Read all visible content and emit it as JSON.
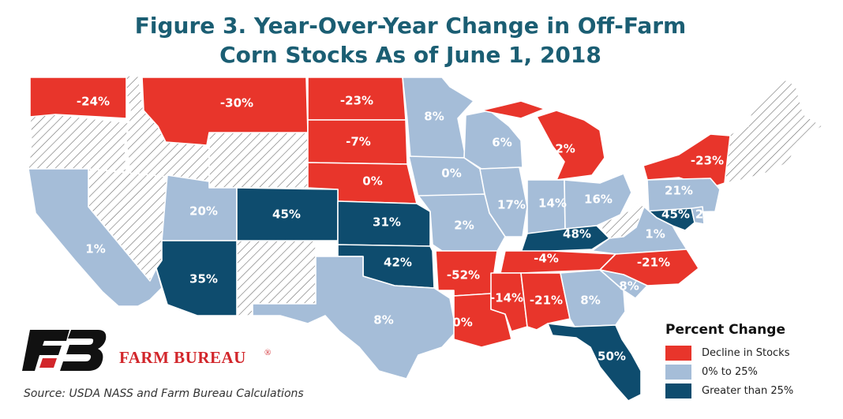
{
  "title": {
    "line1": "Figure 3. Year-Over-Year Change in Off-Farm",
    "line2": "Corn Stocks As of June 1, 2018"
  },
  "legend": {
    "title": "Percent Change",
    "items": [
      {
        "label": "Decline in Stocks",
        "color": "#e8352b"
      },
      {
        "label": "0% to 25%",
        "color": "#a5bdd8"
      },
      {
        "label": "Greater than 25%",
        "color": "#0e4c6e"
      }
    ]
  },
  "colors": {
    "decline": "#e8352b",
    "moderate": "#a5bdd8",
    "high": "#0e4c6e",
    "no_data": "hatched",
    "title": "#1b5e73",
    "brand": "#d2262b"
  },
  "brand": {
    "name": "FARM BUREAU",
    "logo_icon": "fb-logo-icon"
  },
  "source": "Source: USDA NASS and Farm Bureau Calculations",
  "states": [
    {
      "state": "WA",
      "label": "-24%",
      "category": "decline"
    },
    {
      "state": "MT",
      "label": "-30%",
      "category": "decline"
    },
    {
      "state": "ND",
      "label": "-23%",
      "category": "decline"
    },
    {
      "state": "SD",
      "label": "-7%",
      "category": "decline"
    },
    {
      "state": "NE",
      "label": "0%",
      "category": "decline"
    },
    {
      "state": "MN",
      "label": "8%",
      "category": "moderate"
    },
    {
      "state": "WI",
      "label": "6%",
      "category": "moderate"
    },
    {
      "state": "MI",
      "label": "-2%",
      "category": "decline"
    },
    {
      "state": "NY",
      "label": "-23%",
      "category": "decline"
    },
    {
      "state": "IA",
      "label": "0%",
      "category": "moderate"
    },
    {
      "state": "IL",
      "label": "17%",
      "category": "moderate"
    },
    {
      "state": "IN",
      "label": "14%",
      "category": "moderate"
    },
    {
      "state": "OH",
      "label": "16%",
      "category": "moderate"
    },
    {
      "state": "PA",
      "label": "21%",
      "category": "moderate"
    },
    {
      "state": "MD",
      "label": "45%",
      "category": "high"
    },
    {
      "state": "DE",
      "label": "2",
      "category": "moderate"
    },
    {
      "state": "NV",
      "label": "",
      "category": "no_data"
    },
    {
      "state": "CA",
      "label": "1%",
      "category": "moderate"
    },
    {
      "state": "UT",
      "label": "20%",
      "category": "moderate"
    },
    {
      "state": "CO",
      "label": "45%",
      "category": "high"
    },
    {
      "state": "KS",
      "label": "31%",
      "category": "high"
    },
    {
      "state": "MO",
      "label": "2%",
      "category": "moderate"
    },
    {
      "state": "KY",
      "label": "48%",
      "category": "high"
    },
    {
      "state": "VA",
      "label": "1%",
      "category": "moderate"
    },
    {
      "state": "AZ",
      "label": "35%",
      "category": "high"
    },
    {
      "state": "OK",
      "label": "42%",
      "category": "high"
    },
    {
      "state": "AR",
      "label": "-52%",
      "category": "decline"
    },
    {
      "state": "TN",
      "label": "-4%",
      "category": "decline"
    },
    {
      "state": "NC",
      "label": "-21%",
      "category": "decline"
    },
    {
      "state": "TX",
      "label": "8%",
      "category": "moderate"
    },
    {
      "state": "LA",
      "label": "0%",
      "category": "decline"
    },
    {
      "state": "MS",
      "label": "-14%",
      "category": "decline"
    },
    {
      "state": "AL",
      "label": "-21%",
      "category": "decline"
    },
    {
      "state": "GA",
      "label": "8%",
      "category": "moderate"
    },
    {
      "state": "SC",
      "label": "8%",
      "category": "moderate"
    },
    {
      "state": "FL",
      "label": "50%",
      "category": "high"
    }
  ]
}
